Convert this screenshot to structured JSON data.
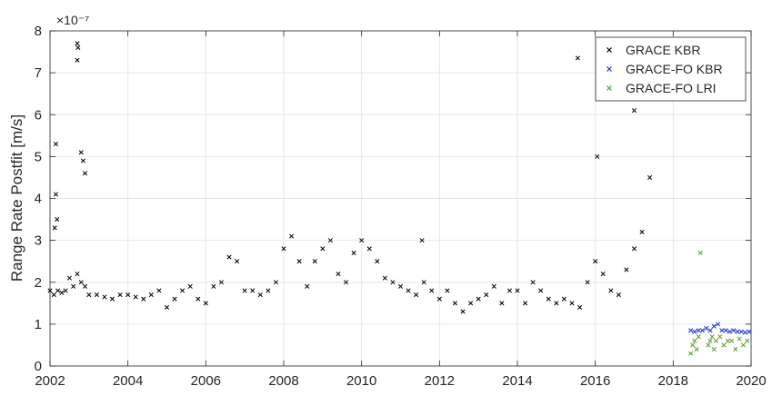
{
  "chart_data": {
    "type": "scatter",
    "title": "",
    "xlabel": "",
    "ylabel": "Range Rate Postfit [m/s]",
    "y_multiplier_label": "×10⁻⁷",
    "xlim": [
      2002,
      2020
    ],
    "ylim": [
      0,
      8
    ],
    "grid": true,
    "legend_position": "top-right",
    "x_ticks": [
      2002,
      2004,
      2006,
      2008,
      2010,
      2012,
      2014,
      2016,
      2018,
      2020
    ],
    "x_tick_labels": [
      "2002",
      "2004",
      "2006",
      "2008",
      "2010",
      "2012",
      "2014",
      "2016",
      "2018",
      "2020"
    ],
    "y_ticks": [
      0,
      1,
      2,
      3,
      4,
      5,
      6,
      7,
      8
    ],
    "y_tick_labels": [
      "0",
      "1",
      "2",
      "3",
      "4",
      "5",
      "6",
      "7",
      "8"
    ],
    "series": [
      {
        "name": "GRACE KBR",
        "color": "#000000",
        "marker": "x",
        "x": [
          2002.0,
          2002.1,
          2002.2,
          2002.3,
          2002.4,
          2002.5,
          2002.6,
          2002.7,
          2002.8,
          2002.9,
          2003.0,
          2003.2,
          2003.4,
          2003.6,
          2003.8,
          2004.0,
          2004.2,
          2004.4,
          2004.6,
          2004.8,
          2005.0,
          2005.2,
          2005.4,
          2005.6,
          2005.8,
          2006.0,
          2006.2,
          2006.4,
          2006.6,
          2006.8,
          2007.0,
          2007.2,
          2007.4,
          2007.6,
          2007.8,
          2008.0,
          2008.2,
          2008.4,
          2008.6,
          2008.8,
          2009.0,
          2009.2,
          2009.4,
          2009.6,
          2009.8,
          2010.0,
          2010.2,
          2010.4,
          2010.6,
          2010.8,
          2011.0,
          2011.2,
          2011.4,
          2011.6,
          2011.8,
          2012.0,
          2012.2,
          2012.4,
          2012.6,
          2012.8,
          2013.0,
          2013.2,
          2013.4,
          2013.6,
          2013.8,
          2014.0,
          2014.2,
          2014.4,
          2014.6,
          2014.8,
          2015.0,
          2015.2,
          2015.4,
          2015.6,
          2015.8,
          2016.0,
          2016.2,
          2016.4,
          2016.6,
          2016.8,
          2017.0,
          2017.2,
          2017.4,
          2002.15,
          2002.15,
          2002.18,
          2002.7,
          2002.72,
          2002.7,
          2002.8,
          2002.85,
          2002.9,
          2015.55,
          2017.0,
          2016.05,
          2011.55,
          2002.12
        ],
        "y": [
          1.8,
          1.7,
          1.8,
          1.75,
          1.8,
          2.1,
          1.9,
          2.2,
          2.0,
          1.9,
          1.7,
          1.7,
          1.65,
          1.6,
          1.7,
          1.7,
          1.65,
          1.6,
          1.7,
          1.8,
          1.4,
          1.6,
          1.8,
          1.9,
          1.6,
          1.5,
          1.9,
          2.0,
          2.6,
          2.5,
          1.8,
          1.8,
          1.7,
          1.8,
          2.0,
          2.8,
          3.1,
          2.5,
          1.9,
          2.5,
          2.8,
          3.0,
          2.2,
          2.0,
          2.7,
          3.0,
          2.8,
          2.5,
          2.1,
          2.0,
          1.9,
          1.8,
          1.7,
          2.0,
          1.8,
          1.6,
          1.8,
          1.5,
          1.3,
          1.5,
          1.6,
          1.7,
          1.9,
          1.5,
          1.8,
          1.8,
          1.5,
          2.0,
          1.8,
          1.6,
          1.5,
          1.6,
          1.5,
          1.4,
          2.0,
          2.5,
          2.2,
          1.8,
          1.7,
          2.3,
          2.8,
          3.2,
          4.5,
          5.3,
          4.1,
          3.5,
          7.7,
          7.6,
          7.3,
          5.1,
          4.9,
          4.6,
          7.35,
          6.1,
          5.0,
          3.0,
          3.3
        ]
      },
      {
        "name": "GRACE-FO KBR",
        "color": "#1f2fd0",
        "marker": "x",
        "x": [
          2018.45,
          2018.55,
          2018.65,
          2018.75,
          2018.85,
          2018.95,
          2019.05,
          2019.15,
          2019.25,
          2019.35,
          2019.45,
          2019.55,
          2019.65,
          2019.75,
          2019.85,
          2019.95
        ],
        "y": [
          0.85,
          0.82,
          0.85,
          0.85,
          0.9,
          0.85,
          0.95,
          1.0,
          0.85,
          0.85,
          0.82,
          0.85,
          0.82,
          0.82,
          0.8,
          0.82
        ]
      },
      {
        "name": "GRACE-FO LRI",
        "color": "#5a9e2c",
        "marker": "x",
        "x": [
          2018.45,
          2018.5,
          2018.55,
          2018.6,
          2018.65,
          2018.9,
          2018.95,
          2019.0,
          2019.05,
          2019.1,
          2019.2,
          2019.3,
          2019.4,
          2019.5,
          2019.6,
          2019.7,
          2019.8,
          2019.9,
          2018.7
        ],
        "y": [
          0.3,
          0.5,
          0.6,
          0.4,
          0.7,
          0.5,
          0.6,
          0.7,
          0.4,
          0.6,
          0.7,
          0.5,
          0.6,
          0.6,
          0.4,
          0.65,
          0.5,
          0.6,
          2.7
        ]
      }
    ]
  }
}
